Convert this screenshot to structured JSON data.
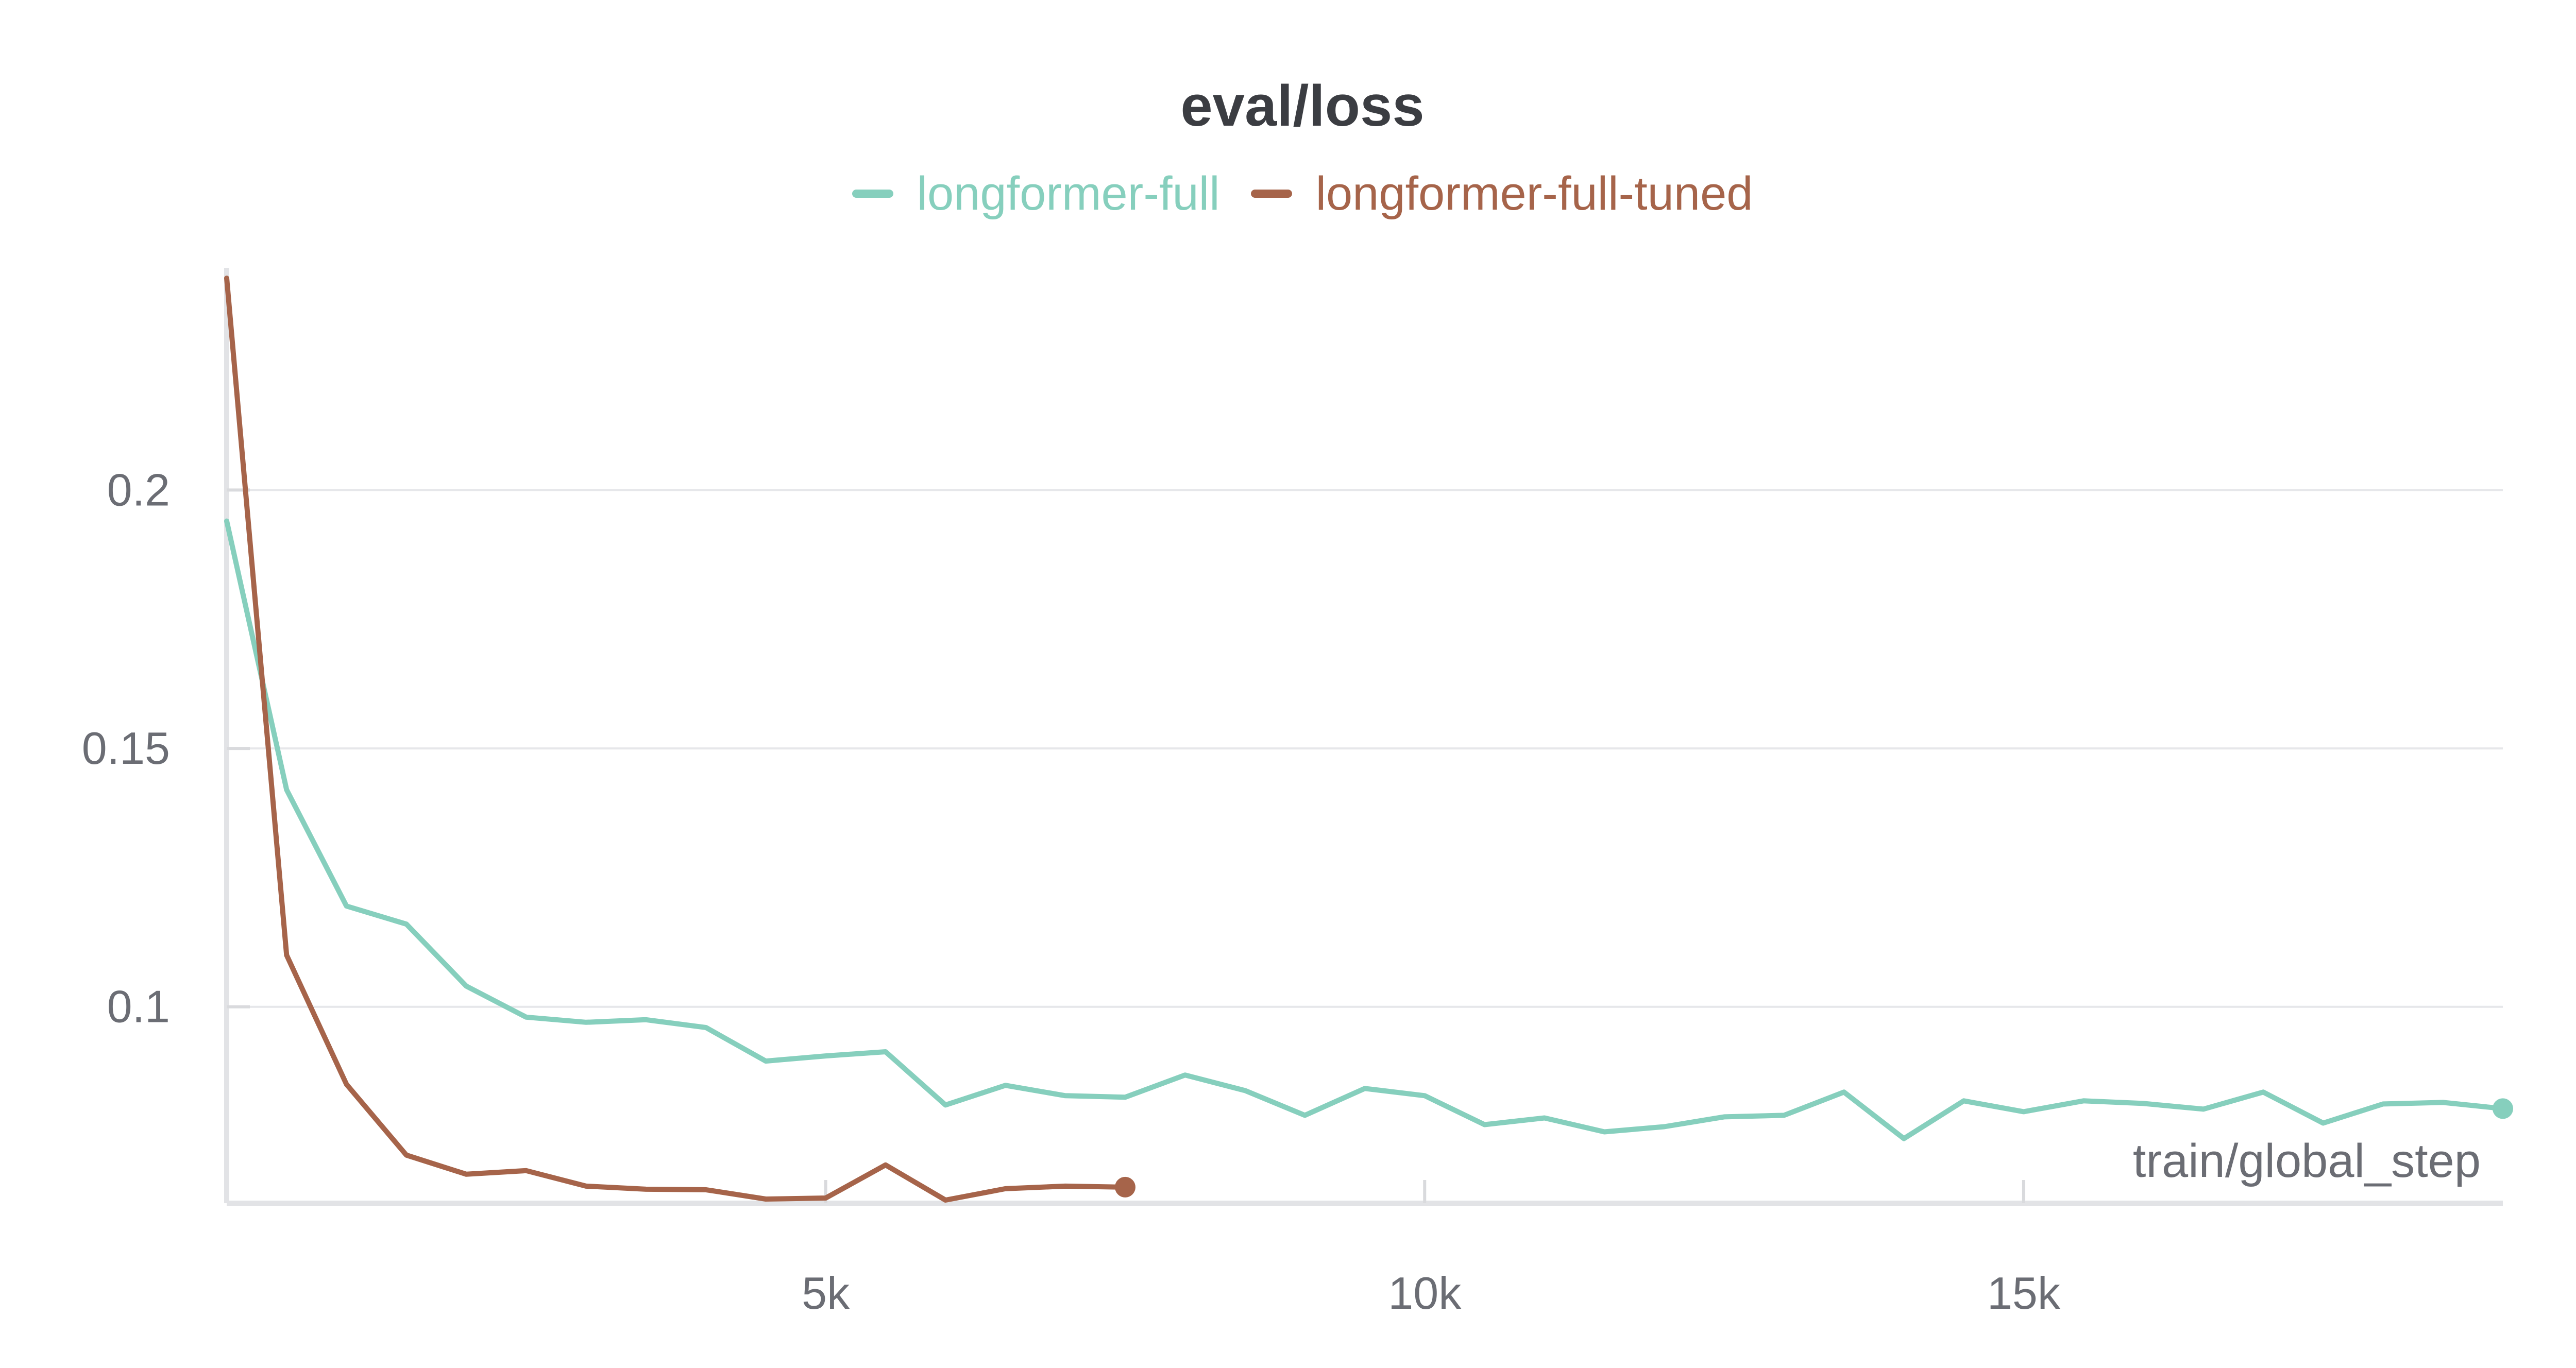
{
  "chart_data": {
    "type": "line",
    "title": "eval/loss",
    "xlabel": "train/global_step",
    "ylabel": "",
    "xlim": [
      0,
      19000
    ],
    "ylim": [
      0.062,
      0.243
    ],
    "x_ticks": [
      5000,
      10000,
      15000
    ],
    "x_tick_labels": [
      "5k",
      "10k",
      "15k"
    ],
    "y_ticks": [
      0.1,
      0.15,
      0.2
    ],
    "y_tick_labels": [
      "0.1",
      "0.15",
      "0.2"
    ],
    "grid": true,
    "legend_position": "top-center",
    "series": [
      {
        "name": "longformer-full",
        "color": "#86cfbd",
        "x": [
          0,
          500,
          1000,
          1500,
          2000,
          2500,
          3000,
          3500,
          4000,
          4500,
          5000,
          5500,
          6000,
          6500,
          7000,
          7500,
          8000,
          8500,
          9000,
          9500,
          10000,
          10500,
          11000,
          11500,
          12000,
          12500,
          13000,
          13500,
          14000,
          14500,
          15000,
          15500,
          16000,
          16500,
          17000,
          17500,
          18000,
          18500,
          19000
        ],
        "y": [
          0.194,
          0.142,
          0.1195,
          0.116,
          0.104,
          0.098,
          0.097,
          0.0975,
          0.096,
          0.0895,
          0.0905,
          0.0913,
          0.081,
          0.0848,
          0.0828,
          0.0825,
          0.0868,
          0.0838,
          0.079,
          0.0842,
          0.0828,
          0.0772,
          0.0785,
          0.0758,
          0.0768,
          0.0787,
          0.079,
          0.0835,
          0.0745,
          0.0818,
          0.0797,
          0.0818,
          0.0813,
          0.0802,
          0.0835,
          0.0775,
          0.0812,
          0.0815,
          0.0803
        ]
      },
      {
        "name": "longformer-full-tuned",
        "color": "#a6644a",
        "x": [
          0,
          500,
          1000,
          1500,
          2000,
          2500,
          3000,
          3500,
          4000,
          4500,
          5000,
          5500,
          6000,
          6500,
          7000,
          7500
        ],
        "y": [
          0.241,
          0.11,
          0.085,
          0.0713,
          0.0676,
          0.0683,
          0.0653,
          0.0647,
          0.0646,
          0.0628,
          0.063,
          0.0694,
          0.0626,
          0.0648,
          0.0653,
          0.0651
        ]
      }
    ]
  }
}
